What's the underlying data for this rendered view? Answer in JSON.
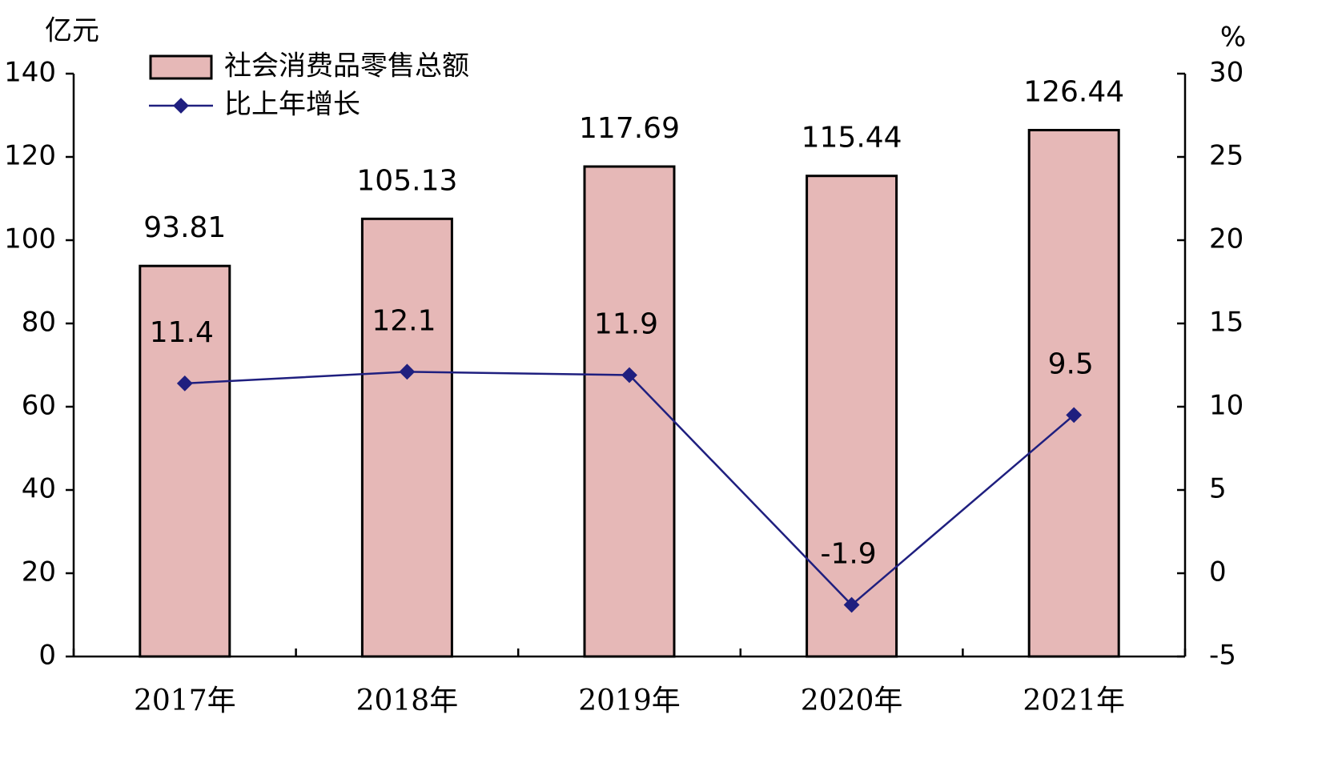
{
  "chart_data": {
    "type": "bar_line",
    "y_label": "亿元",
    "y2_label": "%",
    "categories": [
      "2017年",
      "2018年",
      "2019年",
      "2020年",
      "2021年"
    ],
    "series": [
      {
        "name": "社会消费品零售总额",
        "type": "bar",
        "color": "#e6b8b7",
        "values": [
          93.81,
          105.13,
          117.69,
          115.44,
          126.44
        ]
      },
      {
        "name": "比上年增长",
        "type": "line",
        "axis": "y2",
        "color": "#1f1f7f",
        "values": [
          11.4,
          12.1,
          11.9,
          -1.9,
          9.5
        ]
      }
    ],
    "ylim": [
      0,
      140
    ],
    "yticks": [
      0,
      20,
      40,
      60,
      80,
      100,
      120,
      140
    ],
    "y2lim": [
      -5,
      30
    ],
    "y2ticks": [
      -5,
      0,
      5,
      10,
      15,
      20,
      25,
      30
    ],
    "grid": false
  }
}
